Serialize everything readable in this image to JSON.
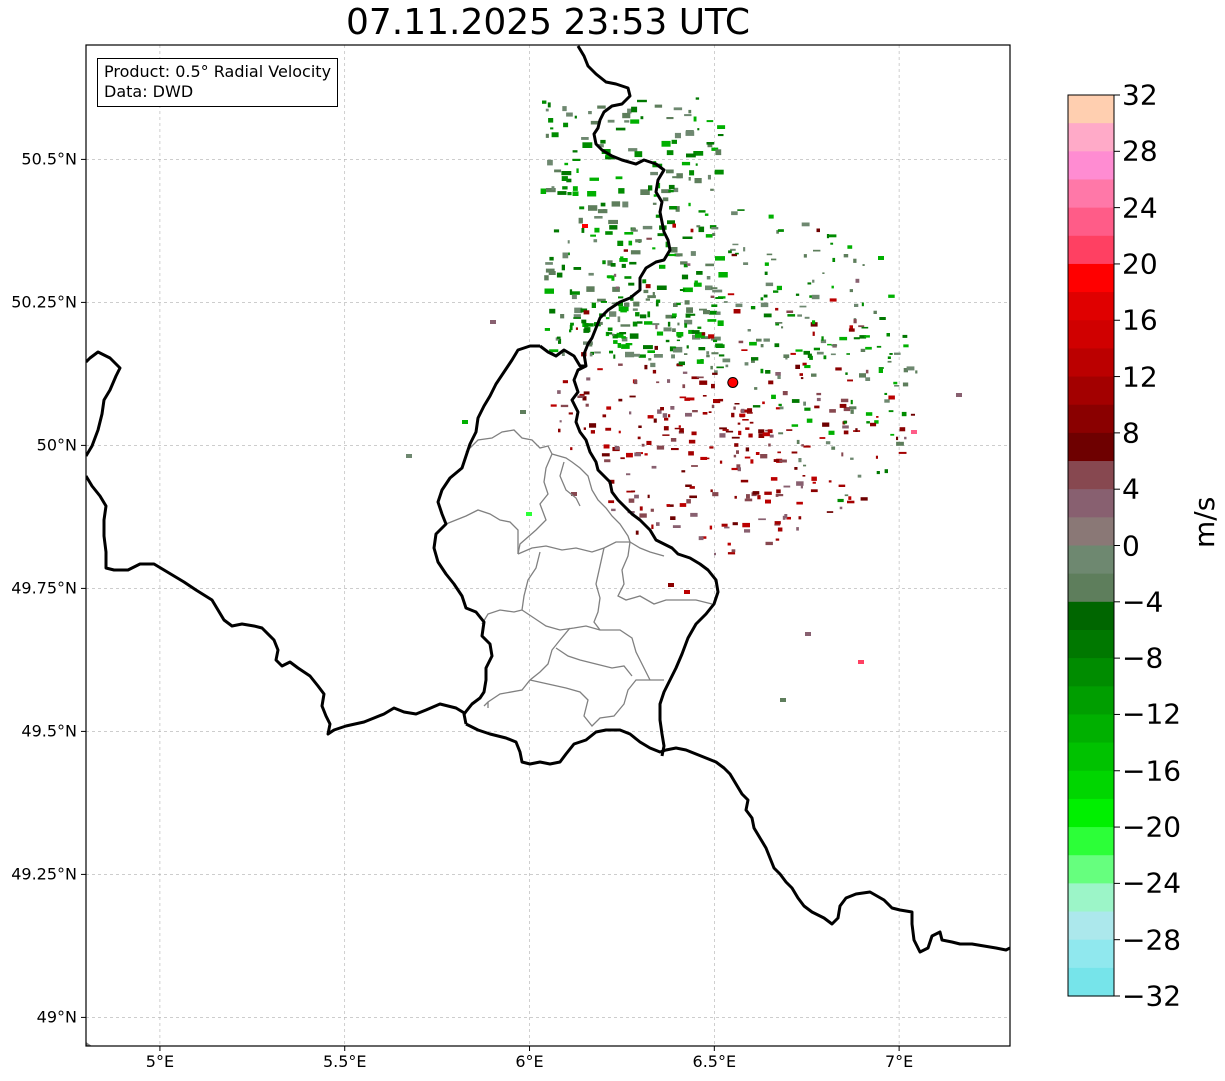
{
  "title": "07.11.2025 23:53 UTC",
  "info_box": {
    "product": "Product: 0.5° Radial Velocity",
    "source": "Data: DWD"
  },
  "map": {
    "extent": {
      "lon_min": 4.8,
      "lon_max": 7.3,
      "lat_min": 48.95,
      "lat_max": 50.7
    },
    "gridlines": true,
    "lat_ticks": [
      {
        "value": 50.5,
        "label": "50.5°N"
      },
      {
        "value": 50.25,
        "label": "50.25°N"
      },
      {
        "value": 50.0,
        "label": "50°N"
      },
      {
        "value": 49.75,
        "label": "49.75°N"
      },
      {
        "value": 49.5,
        "label": "49.5°N"
      },
      {
        "value": 49.25,
        "label": "49.25°N"
      },
      {
        "value": 49.0,
        "label": "49°N"
      }
    ],
    "lon_ticks": [
      {
        "value": 5.0,
        "label": "5°E"
      },
      {
        "value": 5.5,
        "label": "5.5°E"
      },
      {
        "value": 6.0,
        "label": "6°E"
      },
      {
        "value": 6.5,
        "label": "6.5°E"
      },
      {
        "value": 7.0,
        "label": "7°E"
      }
    ],
    "radar_site": {
      "lon": 6.55,
      "lat": 50.11,
      "color": "#ff0000"
    }
  },
  "colorbar": {
    "label": "m/s",
    "range": [
      -32,
      32
    ],
    "ticks": [
      {
        "value": 32,
        "label": "32"
      },
      {
        "value": 28,
        "label": "28"
      },
      {
        "value": 24,
        "label": "24"
      },
      {
        "value": 20,
        "label": "20"
      },
      {
        "value": 16,
        "label": "16"
      },
      {
        "value": 12,
        "label": "12"
      },
      {
        "value": 8,
        "label": "8"
      },
      {
        "value": 4,
        "label": "4"
      },
      {
        "value": 0,
        "label": "0"
      },
      {
        "value": -4,
        "label": "−4"
      },
      {
        "value": -8,
        "label": "−8"
      },
      {
        "value": -12,
        "label": "−12"
      },
      {
        "value": -16,
        "label": "−16"
      },
      {
        "value": -20,
        "label": "−20"
      },
      {
        "value": -24,
        "label": "−24"
      },
      {
        "value": -28,
        "label": "−28"
      },
      {
        "value": -32,
        "label": "−32"
      }
    ],
    "bands_top_to_bottom": [
      "#ffcfb0",
      "#ffaac8",
      "#ff8cd2",
      "#ff78a8",
      "#ff5c88",
      "#ff4062",
      "#ff0000",
      "#e00000",
      "#d00000",
      "#bb0000",
      "#a30000",
      "#8a0000",
      "#6e0000",
      "#874850",
      "#886070",
      "#8a7876",
      "#6e8870",
      "#5e7e5c",
      "#006600",
      "#007800",
      "#008c00",
      "#009e00",
      "#00b000",
      "#00c200",
      "#00d600",
      "#00f000",
      "#2cff38",
      "#66ff7e",
      "#9cf5c8",
      "#ace8ec",
      "#90e8ee",
      "#76e4ea"
    ]
  }
}
